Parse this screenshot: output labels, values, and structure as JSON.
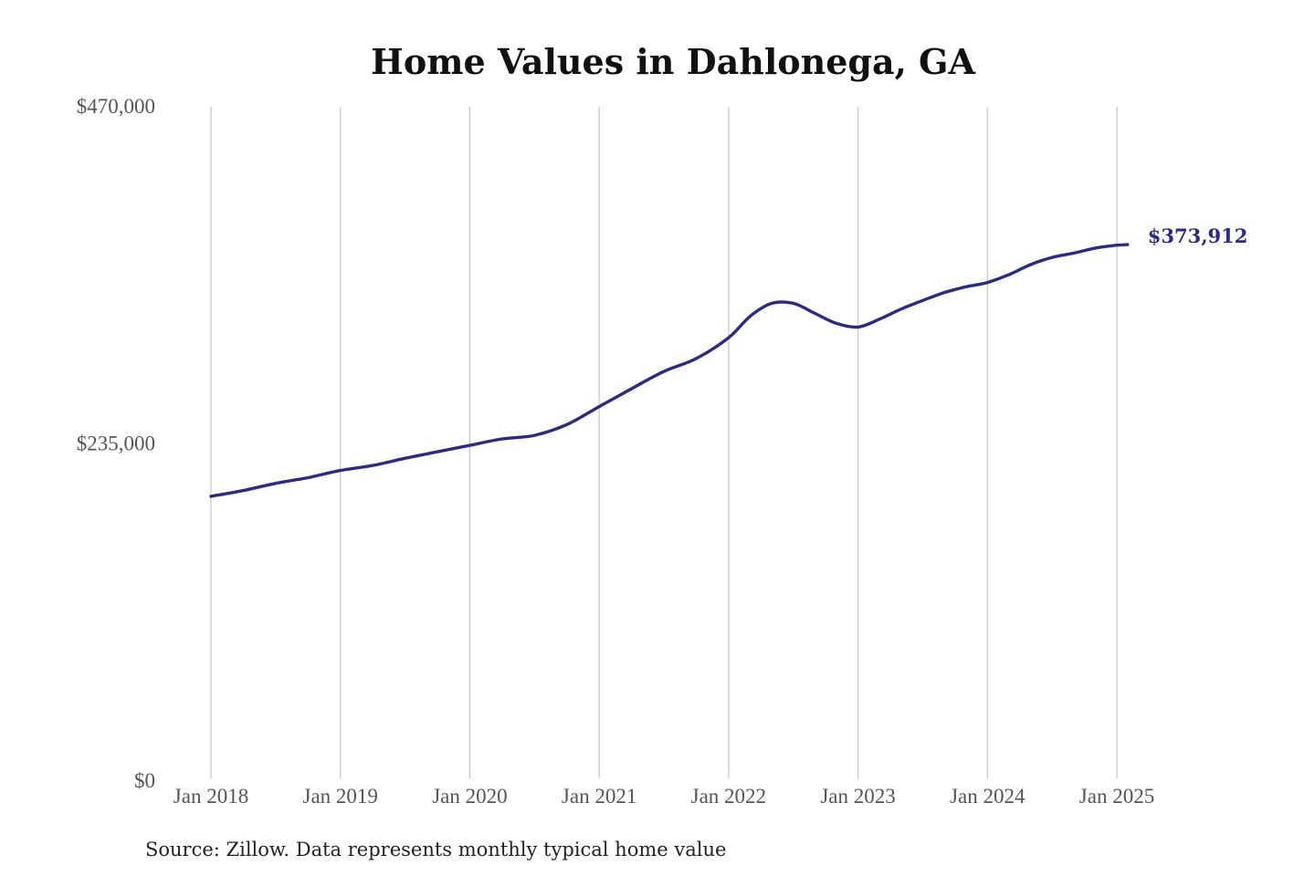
{
  "colors": {
    "series": "#2b2a8a",
    "grid": "#c4c4c4",
    "background": "#ffffff"
  },
  "chart_data": {
    "type": "line",
    "title": "Home Values in Dahlonega, GA",
    "xlabel": "",
    "ylabel": "",
    "x_tick_labels": [
      "Jan 2018",
      "Jan 2019",
      "Jan 2020",
      "Jan 2021",
      "Jan 2022",
      "Jan 2023",
      "Jan 2024",
      "Jan 2025"
    ],
    "y_tick_labels": [
      "$470,000",
      "$235,000",
      "$0"
    ],
    "y_ticks": [
      470000,
      235000,
      0
    ],
    "ylim": [
      0,
      470000
    ],
    "xlim": [
      "2018-01",
      "2025-01"
    ],
    "grid": "vertical lines at each January",
    "legend": "none",
    "end_label": "$373,912",
    "series": [
      {
        "x": [
          "2018-01",
          "2018-04",
          "2018-07",
          "2018-10",
          "2019-01",
          "2019-04",
          "2019-07",
          "2019-10",
          "2020-01",
          "2020-04",
          "2020-07",
          "2020-10",
          "2021-01",
          "2021-04",
          "2021-07",
          "2021-10",
          "2022-01",
          "2022-03",
          "2022-05",
          "2022-07",
          "2022-09",
          "2022-11",
          "2023-01",
          "2023-03",
          "2023-05",
          "2023-07",
          "2023-09",
          "2023-11",
          "2024-01",
          "2024-03",
          "2024-05",
          "2024-07",
          "2024-09",
          "2024-11",
          "2025-01",
          "2025-02"
        ],
        "values": [
          198500,
          202500,
          207500,
          211500,
          216500,
          220000,
          225000,
          229500,
          234000,
          238500,
          241000,
          248500,
          261000,
          273500,
          285500,
          294500,
          309000,
          324000,
          333000,
          333000,
          326000,
          319000,
          316500,
          322000,
          329000,
          335000,
          340500,
          344500,
          347500,
          353000,
          360000,
          365000,
          368000,
          371500,
          373500,
          373912
        ]
      }
    ]
  },
  "source_note": "Source: Zillow. Data represents monthly typical home value"
}
